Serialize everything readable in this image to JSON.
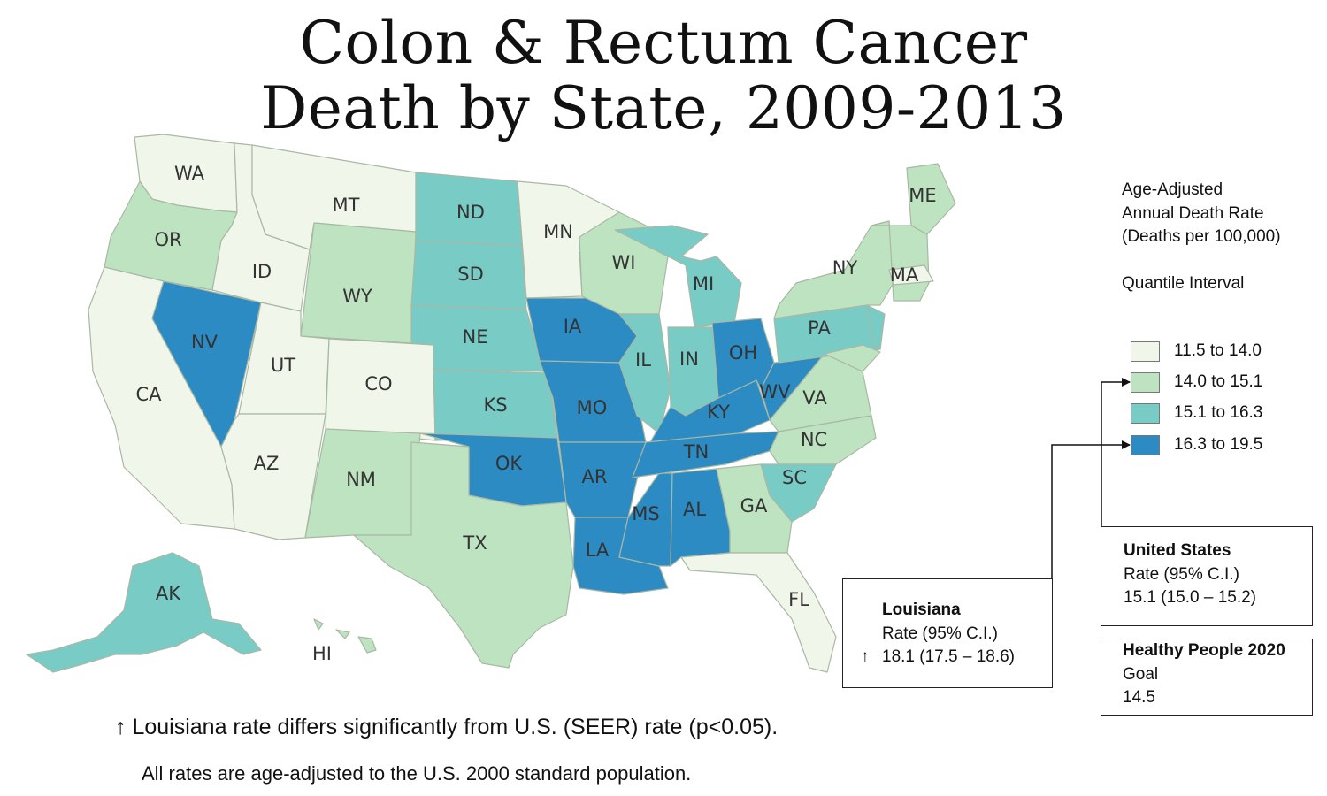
{
  "title": {
    "line1": "Colon & Rectum Cancer",
    "line2": "Death by State, 2009-2013"
  },
  "legend": {
    "heading": [
      "Age-Adjusted",
      "Annual Death Rate",
      "(Deaths per 100,000)"
    ],
    "interval_label": "Quantile Interval",
    "classes": [
      {
        "label": "11.5 to 14.0",
        "color": "#f0f7ea"
      },
      {
        "label": "14.0 to 15.1",
        "color": "#bde3c0"
      },
      {
        "label": "15.1 to 16.3",
        "color": "#79cbc6"
      },
      {
        "label": "16.3 to 19.5",
        "color": "#2c8bc2"
      }
    ]
  },
  "states": [
    {
      "abbr": "WA",
      "class": 0
    },
    {
      "abbr": "OR",
      "class": 1
    },
    {
      "abbr": "CA",
      "class": 0
    },
    {
      "abbr": "NV",
      "class": 3
    },
    {
      "abbr": "ID",
      "class": 0
    },
    {
      "abbr": "MT",
      "class": 0
    },
    {
      "abbr": "WY",
      "class": 1
    },
    {
      "abbr": "UT",
      "class": 0
    },
    {
      "abbr": "AZ",
      "class": 0
    },
    {
      "abbr": "CO",
      "class": 0
    },
    {
      "abbr": "NM",
      "class": 1
    },
    {
      "abbr": "ND",
      "class": 2
    },
    {
      "abbr": "SD",
      "class": 2
    },
    {
      "abbr": "NE",
      "class": 2
    },
    {
      "abbr": "KS",
      "class": 2
    },
    {
      "abbr": "OK",
      "class": 3
    },
    {
      "abbr": "TX",
      "class": 1
    },
    {
      "abbr": "MN",
      "class": 0
    },
    {
      "abbr": "IA",
      "class": 3
    },
    {
      "abbr": "MO",
      "class": 3
    },
    {
      "abbr": "AR",
      "class": 3
    },
    {
      "abbr": "LA",
      "class": 3
    },
    {
      "abbr": "WI",
      "class": 1
    },
    {
      "abbr": "IL",
      "class": 2
    },
    {
      "abbr": "MS",
      "class": 3
    },
    {
      "abbr": "MI",
      "class": 2
    },
    {
      "abbr": "IN",
      "class": 2
    },
    {
      "abbr": "KY",
      "class": 3
    },
    {
      "abbr": "TN",
      "class": 3
    },
    {
      "abbr": "AL",
      "class": 3
    },
    {
      "abbr": "OH",
      "class": 3
    },
    {
      "abbr": "WV",
      "class": 3
    },
    {
      "abbr": "GA",
      "class": 1
    },
    {
      "abbr": "FL",
      "class": 0
    },
    {
      "abbr": "SC",
      "class": 2
    },
    {
      "abbr": "NC",
      "class": 1
    },
    {
      "abbr": "VA",
      "class": 1
    },
    {
      "abbr": "PA",
      "class": 2
    },
    {
      "abbr": "NY",
      "class": 1
    },
    {
      "abbr": "ME",
      "class": 1
    },
    {
      "abbr": "MA",
      "class": 0
    },
    {
      "abbr": "AK",
      "class": 2
    },
    {
      "abbr": "HI",
      "class": 1
    }
  ],
  "louisiana": {
    "name": "Louisiana",
    "rate_label": "Rate (95% C.I.)",
    "arrow": "↑",
    "value": "18.1 (17.5 – 18.6)",
    "class": 3
  },
  "united_states": {
    "name": "United States",
    "rate_label": "Rate (95% C.I.)",
    "value": "15.1 (15.0 – 15.2)",
    "class": 1
  },
  "healthy_people": {
    "name": "Healthy People 2020",
    "goal_label": "Goal",
    "value": "14.5"
  },
  "footnotes": {
    "significance": "↑ Louisiana rate differs significantly from U.S. (SEER) rate (p<0.05).",
    "standard": "All rates are age-adjusted to the U.S. 2000 standard population."
  }
}
